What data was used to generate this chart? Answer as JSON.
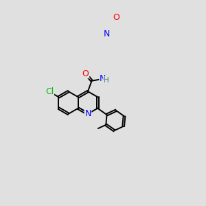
{
  "background_color": "#e0e0e0",
  "bond_color": "#000000",
  "atom_colors": {
    "N": "#0000ff",
    "O": "#ff0000",
    "Cl": "#00bb00",
    "H": "#408080",
    "C": "#000000"
  },
  "figsize": [
    3.0,
    3.0
  ],
  "dpi": 100
}
